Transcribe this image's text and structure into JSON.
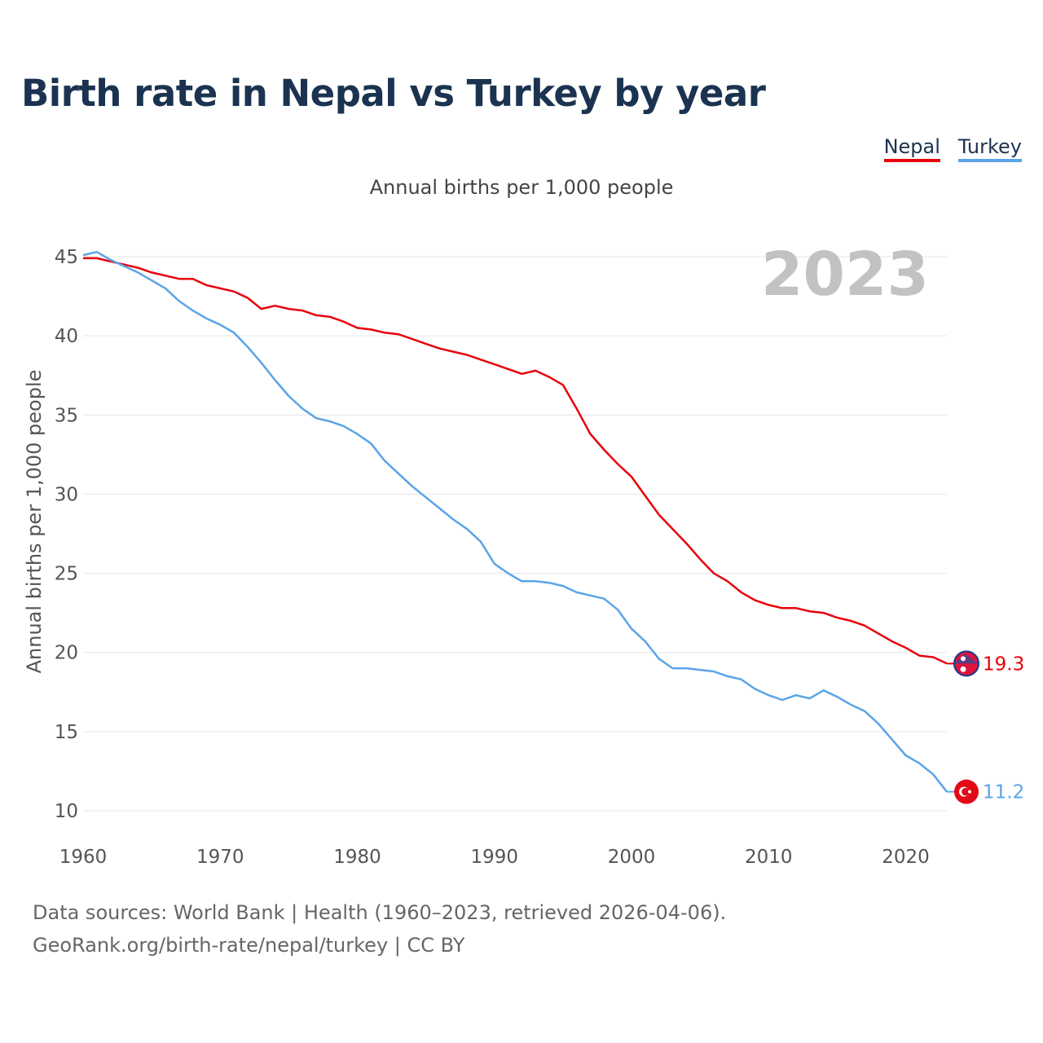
{
  "title": "Birth rate in Nepal vs Turkey by year",
  "legend": [
    {
      "label": "Nepal",
      "color": "#e8000b"
    },
    {
      "label": "Turkey",
      "color": "#5aa4e8"
    }
  ],
  "footer": {
    "line1": "Data sources: World Bank | Health (1960–2023, retrieved 2026-04-06).",
    "line2": "GeoRank.org/birth-rate/nepal/turkey | CC BY"
  },
  "chart_data": {
    "type": "line",
    "title": "Birth rate in Nepal vs Turkey by year",
    "subtitle": "Annual births per 1,000 people",
    "xlabel": "",
    "ylabel": "Annual births per 1,000 people",
    "year_label": "2023",
    "xlim": [
      1960,
      2023
    ],
    "ylim": [
      10,
      45
    ],
    "x_ticks": [
      1960,
      1970,
      1980,
      1990,
      2000,
      2010,
      2020
    ],
    "y_ticks": [
      10,
      15,
      20,
      25,
      30,
      35,
      40,
      45
    ],
    "grid": true,
    "legend_position": "top-right",
    "x": [
      1960,
      1961,
      1962,
      1963,
      1964,
      1965,
      1966,
      1967,
      1968,
      1969,
      1970,
      1971,
      1972,
      1973,
      1974,
      1975,
      1976,
      1977,
      1978,
      1979,
      1980,
      1981,
      1982,
      1983,
      1984,
      1985,
      1986,
      1987,
      1988,
      1989,
      1990,
      1991,
      1992,
      1993,
      1994,
      1995,
      1996,
      1997,
      1998,
      1999,
      2000,
      2001,
      2002,
      2003,
      2004,
      2005,
      2006,
      2007,
      2008,
      2009,
      2010,
      2011,
      2012,
      2013,
      2014,
      2015,
      2016,
      2017,
      2018,
      2019,
      2020,
      2021,
      2022,
      2023
    ],
    "series": [
      {
        "name": "Nepal",
        "color": "#e8000b",
        "end_label": "19.3",
        "values": [
          44.9,
          44.9,
          44.7,
          44.5,
          44.3,
          44.0,
          43.8,
          43.6,
          43.6,
          43.2,
          43.0,
          42.8,
          42.4,
          41.7,
          41.9,
          41.7,
          41.6,
          41.3,
          41.2,
          40.9,
          40.5,
          40.4,
          40.2,
          40.1,
          39.8,
          39.5,
          39.2,
          39.0,
          38.8,
          38.5,
          38.2,
          37.9,
          37.6,
          37.8,
          37.4,
          36.9,
          35.4,
          33.8,
          32.8,
          31.9,
          31.1,
          29.9,
          28.7,
          27.8,
          26.9,
          25.9,
          25.0,
          24.5,
          23.8,
          23.3,
          23.0,
          22.8,
          22.8,
          22.6,
          22.5,
          22.2,
          22.0,
          21.7,
          21.2,
          20.7,
          20.3,
          19.8,
          19.7,
          19.3
        ]
      },
      {
        "name": "Turkey",
        "color": "#5aa4e8",
        "end_label": "11.2",
        "values": [
          45.1,
          45.3,
          44.8,
          44.4,
          44.0,
          43.5,
          43.0,
          42.2,
          41.6,
          41.1,
          40.7,
          40.2,
          39.3,
          38.3,
          37.2,
          36.2,
          35.4,
          34.8,
          34.6,
          34.3,
          33.8,
          33.2,
          32.1,
          31.3,
          30.5,
          29.8,
          29.1,
          28.4,
          27.8,
          27.0,
          25.6,
          25.0,
          24.5,
          24.5,
          24.4,
          24.2,
          23.8,
          23.6,
          23.4,
          22.7,
          21.5,
          20.7,
          19.6,
          19.0,
          19.0,
          18.9,
          18.8,
          18.5,
          18.3,
          17.7,
          17.3,
          17.0,
          17.3,
          17.1,
          17.6,
          17.2,
          16.7,
          16.3,
          15.5,
          14.5,
          13.5,
          13.0,
          12.3,
          11.2
        ]
      }
    ]
  }
}
